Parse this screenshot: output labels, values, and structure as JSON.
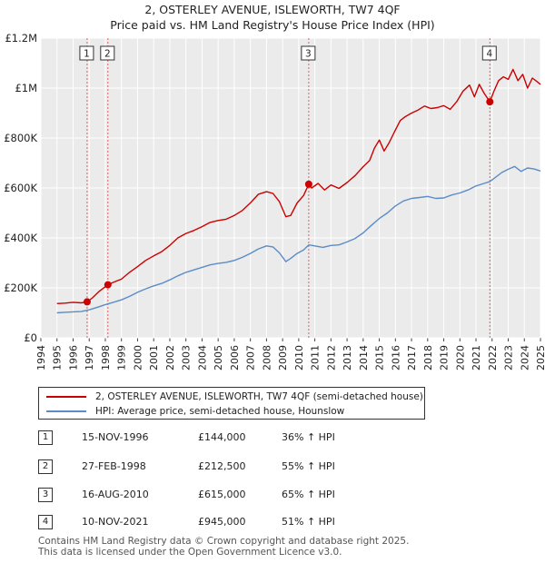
{
  "title": {
    "line1": "2, OSTERLEY AVENUE, ISLEWORTH, TW7 4QF",
    "line2": "Price paid vs. HM Land Registry's House Price Index (HPI)"
  },
  "colors": {
    "property": "#cc0000",
    "hpi": "#5b8cc8",
    "grid": "#dcdcdc",
    "plot_bg": "#ebebeb"
  },
  "legend": {
    "property_label": "2, OSTERLEY AVENUE, ISLEWORTH, TW7 4QF (semi-detached house)",
    "hpi_label": "HPI: Average price, semi-detached house, Hounslow"
  },
  "sales": [
    {
      "id": "1",
      "date": "15-NOV-1996",
      "price": "£144,000",
      "hpi": "36% ↑ HPI"
    },
    {
      "id": "2",
      "date": "27-FEB-1998",
      "price": "£212,500",
      "hpi": "55% ↑ HPI"
    },
    {
      "id": "3",
      "date": "16-AUG-2010",
      "price": "£615,000",
      "hpi": "65% ↑ HPI"
    },
    {
      "id": "4",
      "date": "10-NOV-2021",
      "price": "£945,000",
      "hpi": "51% ↑ HPI"
    }
  ],
  "footer": {
    "line1": "Contains HM Land Registry data © Crown copyright and database right 2025.",
    "line2": "This data is licensed under the Open Government Licence v3.0."
  },
  "chart_data": {
    "type": "line",
    "title": "Price paid vs. HM Land Registry's House Price Index (HPI)",
    "xlabel": "",
    "ylabel": "",
    "xlim": [
      1994,
      2025
    ],
    "ylim": [
      0,
      1200000
    ],
    "y_ticks": [
      {
        "value": 0,
        "label": "£0"
      },
      {
        "value": 200000,
        "label": "£200K"
      },
      {
        "value": 400000,
        "label": "£400K"
      },
      {
        "value": 600000,
        "label": "£600K"
      },
      {
        "value": 800000,
        "label": "£800K"
      },
      {
        "value": 1000000,
        "label": "£1M"
      },
      {
        "value": 1200000,
        "label": "£1.2M"
      }
    ],
    "x_ticks": [
      "1994",
      "1995",
      "1996",
      "1997",
      "1998",
      "1999",
      "2000",
      "2001",
      "2002",
      "2003",
      "2004",
      "2005",
      "2006",
      "2007",
      "2008",
      "2009",
      "2010",
      "2011",
      "2012",
      "2013",
      "2014",
      "2015",
      "2016",
      "2017",
      "2018",
      "2019",
      "2020",
      "2021",
      "2022",
      "2023",
      "2024",
      "2025"
    ],
    "series": [
      {
        "name": "2, OSTERLEY AVENUE, ISLEWORTH, TW7 4QF (semi-detached house)",
        "color": "#cc0000",
        "points": [
          [
            1995.0,
            137000
          ],
          [
            1995.5,
            139000
          ],
          [
            1996.0,
            142000
          ],
          [
            1996.5,
            140000
          ],
          [
            1996.87,
            144000
          ],
          [
            1997.2,
            160000
          ],
          [
            1997.6,
            185000
          ],
          [
            1998.16,
            212500
          ],
          [
            1998.5,
            222000
          ],
          [
            1999.0,
            235000
          ],
          [
            1999.5,
            262000
          ],
          [
            2000.0,
            285000
          ],
          [
            2000.5,
            310000
          ],
          [
            2001.0,
            328000
          ],
          [
            2001.5,
            345000
          ],
          [
            2002.0,
            370000
          ],
          [
            2002.5,
            400000
          ],
          [
            2003.0,
            418000
          ],
          [
            2003.5,
            430000
          ],
          [
            2004.0,
            445000
          ],
          [
            2004.5,
            462000
          ],
          [
            2005.0,
            470000
          ],
          [
            2005.5,
            475000
          ],
          [
            2006.0,
            490000
          ],
          [
            2006.5,
            510000
          ],
          [
            2007.0,
            540000
          ],
          [
            2007.5,
            575000
          ],
          [
            2008.0,
            585000
          ],
          [
            2008.4,
            578000
          ],
          [
            2008.8,
            545000
          ],
          [
            2009.2,
            485000
          ],
          [
            2009.5,
            490000
          ],
          [
            2009.9,
            540000
          ],
          [
            2010.3,
            570000
          ],
          [
            2010.62,
            615000
          ],
          [
            2010.8,
            600000
          ],
          [
            2011.2,
            618000
          ],
          [
            2011.6,
            592000
          ],
          [
            2012.0,
            612000
          ],
          [
            2012.5,
            598000
          ],
          [
            2013.0,
            622000
          ],
          [
            2013.5,
            650000
          ],
          [
            2014.0,
            685000
          ],
          [
            2014.4,
            710000
          ],
          [
            2014.7,
            760000
          ],
          [
            2015.0,
            792000
          ],
          [
            2015.3,
            748000
          ],
          [
            2015.6,
            780000
          ],
          [
            2016.0,
            832000
          ],
          [
            2016.3,
            870000
          ],
          [
            2016.6,
            885000
          ],
          [
            2017.0,
            900000
          ],
          [
            2017.4,
            912000
          ],
          [
            2017.8,
            928000
          ],
          [
            2018.2,
            918000
          ],
          [
            2018.6,
            922000
          ],
          [
            2019.0,
            930000
          ],
          [
            2019.4,
            915000
          ],
          [
            2019.8,
            945000
          ],
          [
            2020.2,
            988000
          ],
          [
            2020.6,
            1012000
          ],
          [
            2020.9,
            965000
          ],
          [
            2021.2,
            1015000
          ],
          [
            2021.5,
            980000
          ],
          [
            2021.86,
            945000
          ],
          [
            2022.1,
            985000
          ],
          [
            2022.4,
            1030000
          ],
          [
            2022.7,
            1045000
          ],
          [
            2023.0,
            1035000
          ],
          [
            2023.3,
            1075000
          ],
          [
            2023.6,
            1030000
          ],
          [
            2023.9,
            1055000
          ],
          [
            2024.2,
            1000000
          ],
          [
            2024.5,
            1040000
          ],
          [
            2024.8,
            1025000
          ],
          [
            2025.0,
            1015000
          ]
        ]
      },
      {
        "name": "HPI: Average price, semi-detached house, Hounslow",
        "color": "#5b8cc8",
        "points": [
          [
            1995.0,
            100000
          ],
          [
            1995.5,
            102000
          ],
          [
            1996.0,
            104000
          ],
          [
            1996.5,
            105000
          ],
          [
            1997.0,
            112000
          ],
          [
            1997.5,
            122000
          ],
          [
            1998.0,
            133000
          ],
          [
            1998.5,
            142000
          ],
          [
            1999.0,
            152000
          ],
          [
            1999.5,
            166000
          ],
          [
            2000.0,
            182000
          ],
          [
            2000.5,
            196000
          ],
          [
            2001.0,
            208000
          ],
          [
            2001.5,
            218000
          ],
          [
            2002.0,
            232000
          ],
          [
            2002.5,
            248000
          ],
          [
            2003.0,
            262000
          ],
          [
            2003.5,
            272000
          ],
          [
            2004.0,
            282000
          ],
          [
            2004.5,
            292000
          ],
          [
            2005.0,
            298000
          ],
          [
            2005.5,
            302000
          ],
          [
            2006.0,
            310000
          ],
          [
            2006.5,
            322000
          ],
          [
            2007.0,
            338000
          ],
          [
            2007.5,
            356000
          ],
          [
            2008.0,
            368000
          ],
          [
            2008.4,
            364000
          ],
          [
            2008.8,
            340000
          ],
          [
            2009.2,
            305000
          ],
          [
            2009.5,
            318000
          ],
          [
            2009.9,
            338000
          ],
          [
            2010.3,
            352000
          ],
          [
            2010.62,
            372000
          ],
          [
            2011.0,
            368000
          ],
          [
            2011.5,
            362000
          ],
          [
            2012.0,
            370000
          ],
          [
            2012.5,
            372000
          ],
          [
            2013.0,
            384000
          ],
          [
            2013.5,
            398000
          ],
          [
            2014.0,
            420000
          ],
          [
            2014.5,
            450000
          ],
          [
            2015.0,
            478000
          ],
          [
            2015.5,
            500000
          ],
          [
            2016.0,
            528000
          ],
          [
            2016.5,
            548000
          ],
          [
            2017.0,
            558000
          ],
          [
            2017.5,
            562000
          ],
          [
            2018.0,
            566000
          ],
          [
            2018.5,
            558000
          ],
          [
            2019.0,
            560000
          ],
          [
            2019.5,
            572000
          ],
          [
            2020.0,
            580000
          ],
          [
            2020.5,
            592000
          ],
          [
            2021.0,
            608000
          ],
          [
            2021.5,
            618000
          ],
          [
            2021.86,
            626000
          ],
          [
            2022.2,
            642000
          ],
          [
            2022.6,
            662000
          ],
          [
            2023.0,
            675000
          ],
          [
            2023.4,
            686000
          ],
          [
            2023.8,
            666000
          ],
          [
            2024.2,
            680000
          ],
          [
            2024.6,
            676000
          ],
          [
            2025.0,
            668000
          ]
        ]
      }
    ],
    "sale_markers": [
      {
        "label": "1",
        "x": 1996.87,
        "y": 144000
      },
      {
        "label": "2",
        "x": 1998.16,
        "y": 212500
      },
      {
        "label": "3",
        "x": 2010.62,
        "y": 615000
      },
      {
        "label": "4",
        "x": 2021.86,
        "y": 945000
      }
    ]
  }
}
